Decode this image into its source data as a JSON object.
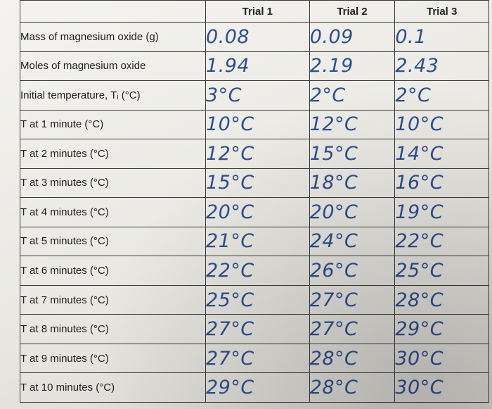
{
  "table": {
    "headers": [
      "",
      "Trial 1",
      "Trial 2",
      "Trial 3"
    ],
    "rows": [
      {
        "label": "Mass of magnesium oxide (g)",
        "values": [
          "0.08",
          "0.09",
          "0.1"
        ]
      },
      {
        "label": "Moles of magnesium oxide",
        "values": [
          "1.94",
          "2.19",
          "2.43"
        ]
      },
      {
        "label": "Initial temperature, Tᵢ (°C)",
        "values": [
          "3°C",
          "2°C",
          "2°C"
        ]
      },
      {
        "label": "T at 1 minute (°C)",
        "values": [
          "10°C",
          "12°C",
          "10°C"
        ]
      },
      {
        "label": "T at 2 minutes (°C)",
        "values": [
          "12°C",
          "15°C",
          "14°C"
        ]
      },
      {
        "label": "T at 3 minutes (°C)",
        "values": [
          "15°C",
          "18°C",
          "16°C"
        ]
      },
      {
        "label": "T at 4 minutes (°C)",
        "values": [
          "20°C",
          "20°C",
          "19°C"
        ]
      },
      {
        "label": "T at 5 minutes (°C)",
        "values": [
          "21°C",
          "24°C",
          "22°C"
        ]
      },
      {
        "label": "T at 6 minutes (°C)",
        "values": [
          "22°C",
          "26°C",
          "25°C"
        ]
      },
      {
        "label": "T at 7 minutes (°C)",
        "values": [
          "25°C",
          "27°C",
          "28°C"
        ]
      },
      {
        "label": "T at 8 minutes (°C)",
        "values": [
          "27°C",
          "27°C",
          "29°C"
        ]
      },
      {
        "label": "T at 9 minutes (°C)",
        "values": [
          "27°C",
          "28°C",
          "30°C"
        ]
      },
      {
        "label": "T at 10 minutes (°C)",
        "values": [
          "29°C",
          "28°C",
          "30°C"
        ]
      }
    ]
  },
  "colors": {
    "handwriting": "#2d4f8f",
    "grid": "#3a3a3a"
  }
}
